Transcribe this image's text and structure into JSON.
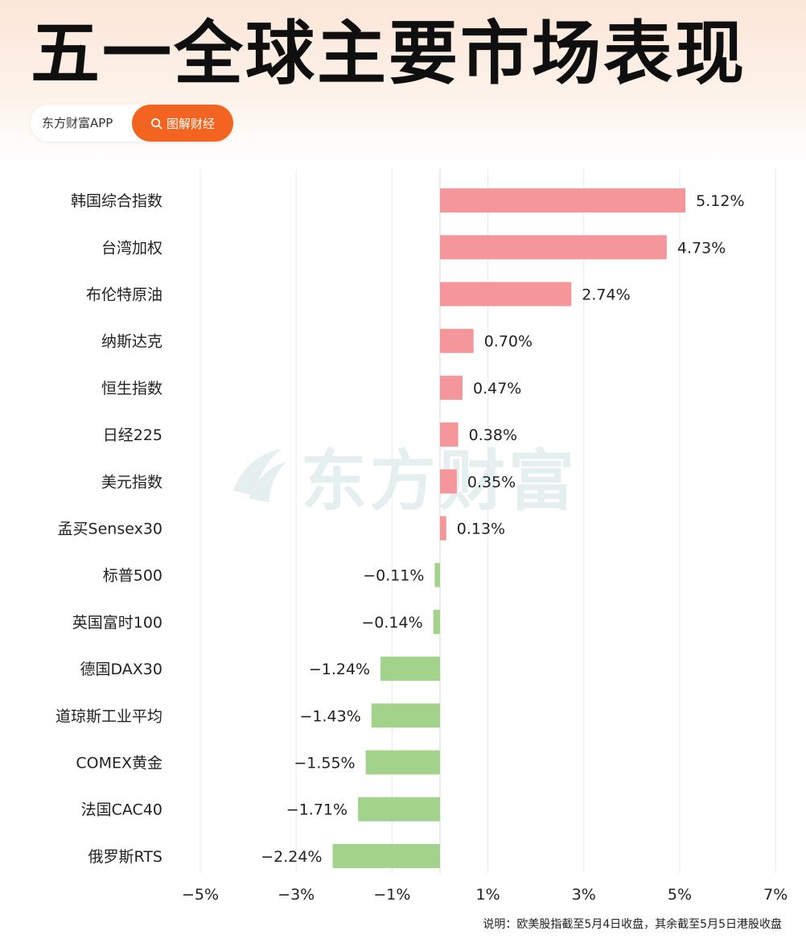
{
  "title": "五一全球主要市场表现",
  "brand": {
    "name": "东方财富APP",
    "tag": "图解财经"
  },
  "watermark": "东方财富",
  "footnote": "说明：欧美股指截至5月4日收盘，其余截至5月5日港股收盘",
  "chart_data": {
    "type": "bar",
    "orientation": "horizontal",
    "categories": [
      "韩国综合指数",
      "台湾加权",
      "布伦特原油",
      "纳斯达克",
      "恒生指数",
      "日经225",
      "美元指数",
      "孟买Sensex30",
      "标普500",
      "英国富时100",
      "德国DAX30",
      "道琼斯工业平均",
      "COMEX黄金",
      "法国CAC40",
      "俄罗斯RTS"
    ],
    "values": [
      5.12,
      4.73,
      2.74,
      0.7,
      0.47,
      0.38,
      0.35,
      0.13,
      -0.11,
      -0.14,
      -1.24,
      -1.43,
      -1.55,
      -1.71,
      -2.24
    ],
    "value_labels": [
      "5.12%",
      "4.73%",
      "2.74%",
      "0.70%",
      "0.47%",
      "0.38%",
      "0.35%",
      "0.13%",
      "−0.11%",
      "−0.14%",
      "−1.24%",
      "−1.43%",
      "−1.55%",
      "−1.71%",
      "−2.24%"
    ],
    "xlim": [
      -5,
      7
    ],
    "xticks": [
      -5,
      -3,
      -1,
      1,
      3,
      5,
      7
    ],
    "xtick_labels": [
      "−5%",
      "−3%",
      "−1%",
      "1%",
      "3%",
      "5%",
      "7%"
    ],
    "grid": "vertical",
    "colors": {
      "positive": "#f4969a",
      "negative": "#a3d38a",
      "grid": "#e8e8e8"
    }
  }
}
